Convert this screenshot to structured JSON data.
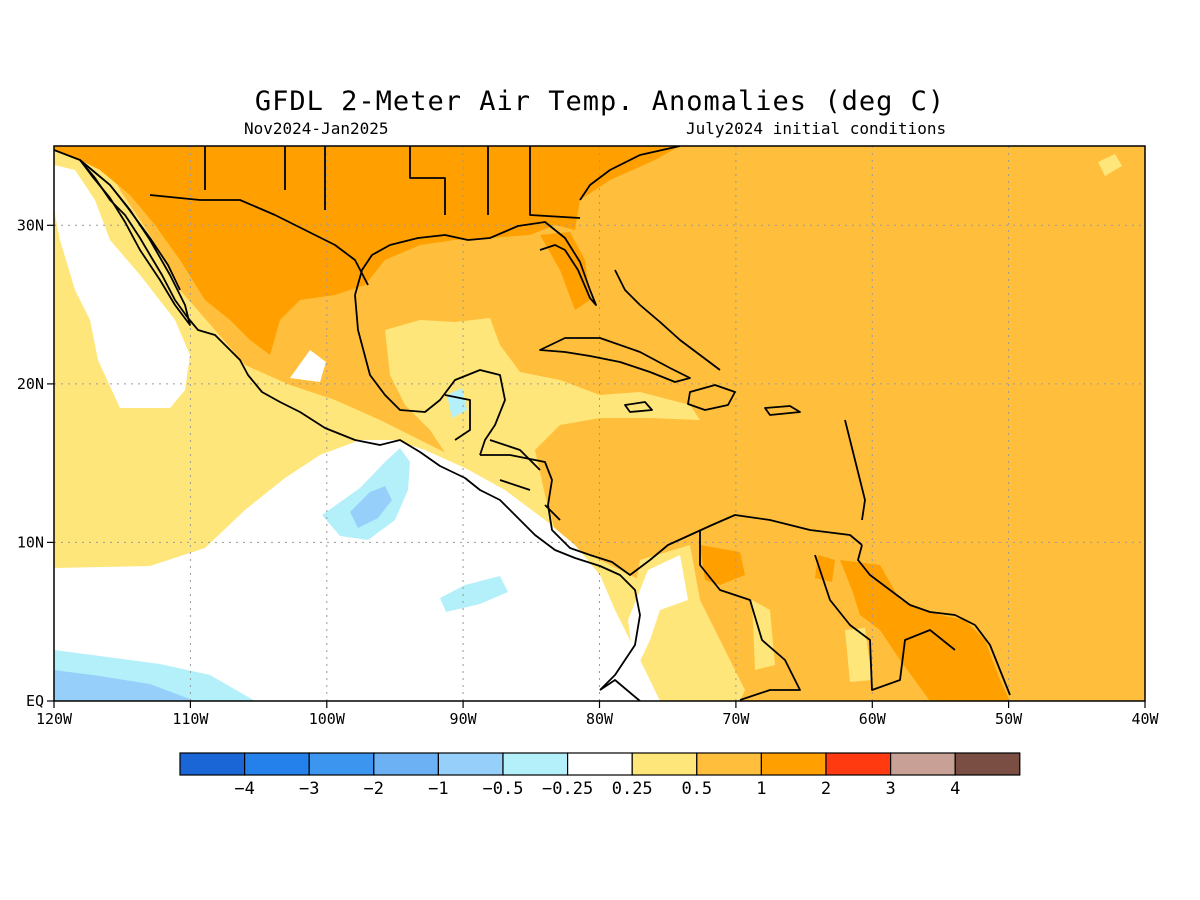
{
  "title": "GFDL 2-Meter Air Temp. Anomalies (deg C)",
  "subtitle_left": "Nov2024-Jan2025",
  "subtitle_right": "July2024 initial conditions",
  "map": {
    "lon_ticks": [
      {
        "lon": -120,
        "label": "120W"
      },
      {
        "lon": -110,
        "label": "110W"
      },
      {
        "lon": -100,
        "label": "100W"
      },
      {
        "lon": -90,
        "label": "90W"
      },
      {
        "lon": -80,
        "label": "80W"
      },
      {
        "lon": -70,
        "label": "70W"
      },
      {
        "lon": -60,
        "label": "60W"
      },
      {
        "lon": -50,
        "label": "50W"
      },
      {
        "lon": -40,
        "label": "40W"
      }
    ],
    "lat_ticks": [
      {
        "lat": 0,
        "label": "EQ"
      },
      {
        "lat": 10,
        "label": "10N"
      },
      {
        "lat": 20,
        "label": "20N"
      },
      {
        "lat": 30,
        "label": "30N"
      }
    ],
    "lon_range": [
      -120,
      -40
    ],
    "lat_range": [
      0,
      35
    ],
    "grid": true
  },
  "colorbar": {
    "colors": [
      "#1a66d6",
      "#2480ea",
      "#3c96f0",
      "#6cb1f3",
      "#96d0fa",
      "#b4f0fa",
      "#ffffff",
      "#ffe67a",
      "#ffbf3c",
      "#ffa000",
      "#ff3a10",
      "#c8a096",
      "#7a4e42"
    ],
    "labels": [
      "-4",
      "-3",
      "-2",
      "-1",
      "-0.5",
      "-0.25",
      "0.25",
      "0.5",
      "1",
      "2",
      "3",
      "4"
    ]
  },
  "legend_colors": {
    "white": "#ffffff",
    "light_yellow": "#ffe67a",
    "light_orange": "#ffbf3c",
    "orange": "#ffa000",
    "light_cyan": "#b4f0fa",
    "light_blue": "#96d0fa",
    "blue": "#6cb1f3"
  }
}
